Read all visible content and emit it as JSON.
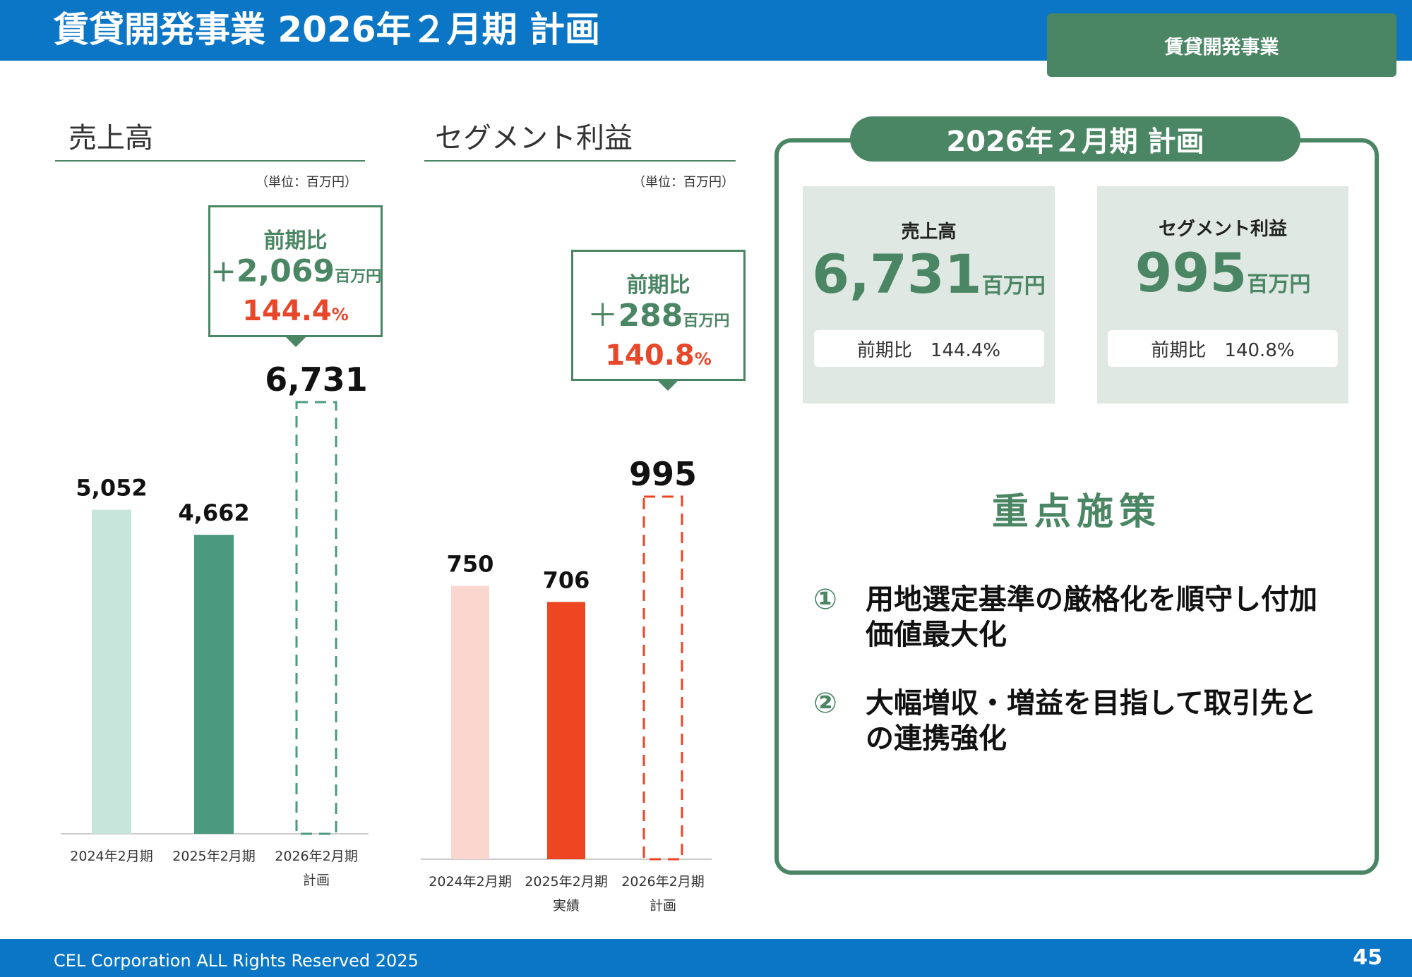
{
  "header": {
    "title": "賃貸開発事業 2026年２月期 計画",
    "segment_tag": "賃貸開発事業"
  },
  "footer": {
    "copyright": "CEL Corporation ALL Rights Reserved 2025",
    "page_number": "45"
  },
  "sales_section": {
    "title": "売上高",
    "unit": "（単位：百万円）",
    "callout": {
      "label": "前期比",
      "diff_sign": "+",
      "diff": "2,069",
      "diff_unit": "百万円",
      "pct": "144.4",
      "pct_unit": "%"
    }
  },
  "profit_section": {
    "title": "セグメント利益",
    "unit": "（単位：百万円）",
    "callout": {
      "label": "前期比",
      "diff_sign": "＋",
      "diff": "288",
      "diff_unit": "百万円",
      "pct": "140.8",
      "pct_unit": "%"
    }
  },
  "chart_data": [
    {
      "type": "bar",
      "title": "売上高",
      "categories": [
        "2024年2月期",
        "2025年2月期",
        "2026年2月期 計画"
      ],
      "category_lines": [
        [
          "2024年2月期"
        ],
        [
          "2025年2月期"
        ],
        [
          "2026年2月期",
          "計画"
        ]
      ],
      "values": [
        5052,
        4662,
        6731
      ],
      "value_labels": [
        "5,052",
        "4,662",
        "6,731"
      ],
      "bar_styles": [
        "solid",
        "solid",
        "dashed"
      ],
      "colors": [
        "#c8e5db",
        "#4b9a80",
        "#4b9a80"
      ],
      "ylim": [
        0,
        6731
      ]
    },
    {
      "type": "bar",
      "title": "セグメント利益",
      "categories": [
        "2024年2月期",
        "2025年2月期 実績",
        "2026年2月期 計画"
      ],
      "category_lines": [
        [
          "2024年2月期"
        ],
        [
          "2025年2月期",
          "実績"
        ],
        [
          "2026年2月期",
          "計画"
        ]
      ],
      "values": [
        750,
        706,
        995
      ],
      "value_labels": [
        "750",
        "706",
        "995"
      ],
      "bar_styles": [
        "solid",
        "solid",
        "dashed"
      ],
      "colors": [
        "#fbd6cf",
        "#ee4523",
        "#ee4523"
      ],
      "ylim": [
        0,
        995
      ]
    }
  ],
  "plan_panel": {
    "title": "2026年２月期 計画",
    "sales": {
      "label": "売上高",
      "value": "6,731",
      "unit": "百万円",
      "yoy": "前期比　144.4%"
    },
    "profit": {
      "label": "セグメント利益",
      "value": "995",
      "unit": "百万円",
      "yoy": "前期比　140.8%"
    },
    "focus_title": "重点施策",
    "measures": [
      {
        "num": "①",
        "text": "用地選定基準の厳格化を順守し付加価値最大化"
      },
      {
        "num": "②",
        "text": "大幅増収・増益を目指して取引先との連携強化"
      }
    ]
  },
  "colors": {
    "brand_blue": "#0b76c5",
    "accent_green": "#4b8664",
    "accent_red": "#e8472a"
  }
}
